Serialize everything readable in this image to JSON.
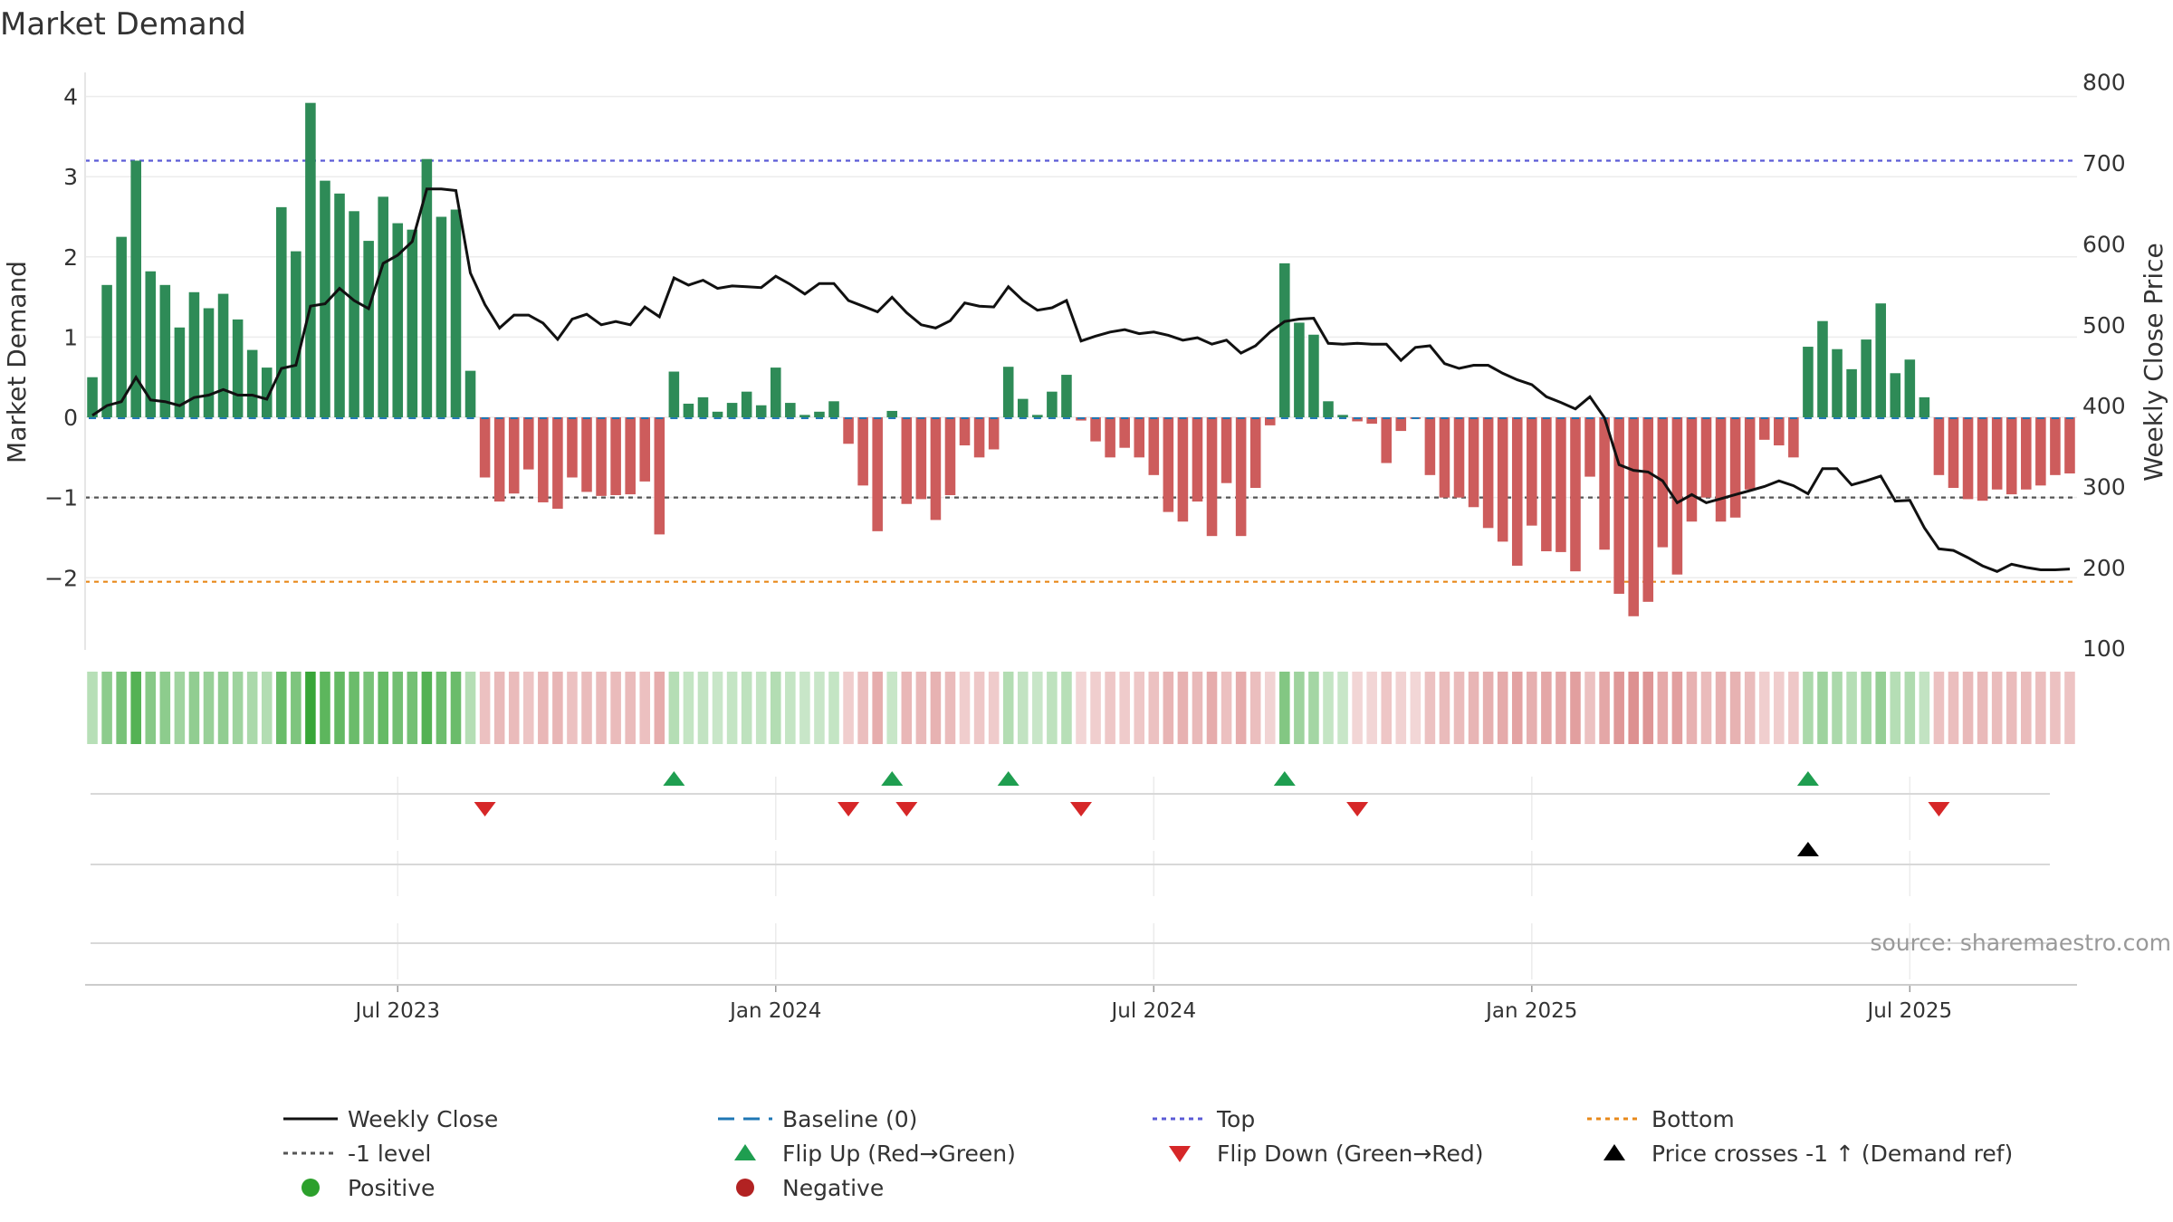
{
  "chart_data": {
    "type": "bar+line",
    "title": "Market Demand",
    "ylabel_left": "Market Demand",
    "ylabel_right": "Weekly Close Price",
    "ylim_left": [
      -2.9,
      4.3
    ],
    "ylim_right": [
      98,
      812
    ],
    "yticks_left": [
      {
        "v": 4,
        "label": "4"
      },
      {
        "v": 3,
        "label": "3"
      },
      {
        "v": 2,
        "label": "2"
      },
      {
        "v": 1,
        "label": "1"
      },
      {
        "v": 0,
        "label": "0"
      },
      {
        "v": -1,
        "label": "−1"
      },
      {
        "v": -2,
        "label": "−2"
      }
    ],
    "yticks_right": [
      {
        "v": 800,
        "label": "800"
      },
      {
        "v": 700,
        "label": "700"
      },
      {
        "v": 600,
        "label": "600"
      },
      {
        "v": 500,
        "label": "500"
      },
      {
        "v": 400,
        "label": "400"
      },
      {
        "v": 300,
        "label": "300"
      },
      {
        "v": 200,
        "label": "200"
      },
      {
        "v": 100,
        "label": "100"
      }
    ],
    "x_ticks": [
      {
        "label": "Jul 2023",
        "week": 21
      },
      {
        "label": "Jan 2024",
        "week": 47
      },
      {
        "label": "Jul 2024",
        "week": 73
      },
      {
        "label": "Jan 2025",
        "week": 99
      },
      {
        "label": "Jul 2025",
        "week": 125
      }
    ],
    "reference_lines": {
      "baseline": 0,
      "top": 3.2,
      "minus_one": -1,
      "bottom": -2.05
    },
    "demand": [
      0.5,
      1.65,
      2.25,
      3.2,
      1.82,
      1.65,
      1.12,
      1.56,
      1.36,
      1.54,
      1.22,
      0.84,
      0.62,
      2.62,
      2.07,
      3.92,
      2.95,
      2.79,
      2.57,
      2.2,
      2.75,
      2.42,
      2.34,
      3.22,
      2.5,
      2.59,
      0.58,
      -0.75,
      -1.05,
      -0.95,
      -0.65,
      -1.06,
      -1.14,
      -0.75,
      -0.93,
      -0.98,
      -0.97,
      -0.96,
      -0.8,
      -1.46,
      0.57,
      0.17,
      0.25,
      0.07,
      0.18,
      0.32,
      0.15,
      0.62,
      0.18,
      0.03,
      0.07,
      0.2,
      -0.33,
      -0.85,
      -1.42,
      0.08,
      -1.08,
      -1.02,
      -1.28,
      -0.97,
      -0.35,
      -0.5,
      -0.4,
      0.63,
      0.23,
      0.03,
      0.32,
      0.53,
      -0.04,
      -0.3,
      -0.5,
      -0.38,
      -0.5,
      -0.72,
      -1.18,
      -1.3,
      -1.05,
      -1.48,
      -0.82,
      -1.48,
      -0.88,
      -0.1,
      1.92,
      1.18,
      1.03,
      0.2,
      0.03,
      -0.05,
      -0.08,
      -0.57,
      -0.17,
      -0.02,
      -0.72,
      -1.0,
      -1.0,
      -1.12,
      -1.38,
      -1.55,
      -1.85,
      -1.35,
      -1.67,
      -1.68,
      -1.92,
      -0.74,
      -1.65,
      -2.2,
      -2.48,
      -2.3,
      -1.62,
      -1.96,
      -1.3,
      -1.0,
      -1.3,
      -1.25,
      -0.9,
      -0.28,
      -0.35,
      -0.5,
      0.88,
      1.2,
      0.85,
      0.6,
      0.97,
      1.42,
      0.55,
      0.72,
      0.25,
      -0.72,
      -0.88,
      -1.02,
      -1.04,
      -0.9,
      -0.96,
      -0.9,
      -0.85,
      -0.72,
      -0.7
    ],
    "weekly_close": [
      388,
      400,
      405,
      435,
      407,
      405,
      400,
      410,
      413,
      420,
      413,
      413,
      408,
      446,
      450,
      523,
      526,
      545,
      530,
      520,
      576,
      586,
      603,
      668,
      668,
      666,
      564,
      525,
      496,
      512,
      512,
      502,
      482,
      507,
      513,
      500,
      504,
      500,
      522,
      510,
      558,
      549,
      555,
      545,
      548,
      547,
      546,
      560,
      550,
      538,
      551,
      551,
      530,
      523,
      516,
      534,
      515,
      500,
      496,
      505,
      527,
      523,
      522,
      547,
      530,
      518,
      521,
      530,
      480,
      486,
      491,
      494,
      489,
      491,
      487,
      481,
      484,
      476,
      481,
      465,
      474,
      491,
      504,
      507,
      508,
      477,
      476,
      477,
      476,
      476,
      456,
      472,
      474,
      452,
      446,
      450,
      450,
      440,
      432,
      426,
      411,
      404,
      396,
      411,
      385,
      327,
      320,
      318,
      307,
      280,
      290,
      280,
      285,
      290,
      295,
      300,
      307,
      301,
      291,
      322,
      322,
      302,
      307,
      313,
      282,
      283,
      249,
      223,
      221,
      212,
      202,
      195,
      204,
      200,
      197,
      197,
      198
    ]
  },
  "signals": {
    "flip_up": [
      40,
      55,
      63,
      82,
      118
    ],
    "flip_down": [
      27,
      52,
      56,
      68,
      87,
      127
    ],
    "price_cross": [
      118
    ]
  },
  "colors": {
    "positive_bar": "#2e8b57",
    "negative_bar": "#cd5c5c",
    "close_line": "#111111",
    "baseline": "#1f77b4",
    "top": "#5b5bd6",
    "minus_one": "#555555",
    "bottom": "#e8891a",
    "flip_up": "#1f9e50",
    "flip_down": "#d62728",
    "cross": "#000000",
    "positive_marker": "#2ca02c",
    "negative_marker": "#b22222"
  },
  "source": "source: sharemaestro.com",
  "legend": {
    "weekly_close": "Weekly Close",
    "baseline": "Baseline (0)",
    "top": "Top",
    "bottom": "Bottom",
    "minus_one": "-1 level",
    "flip_up": "Flip Up (Red→Green)",
    "flip_down": "Flip Down (Green→Red)",
    "price_cross": "Price crosses -1 ↑ (Demand ref)",
    "positive": "Positive",
    "negative": "Negative"
  }
}
